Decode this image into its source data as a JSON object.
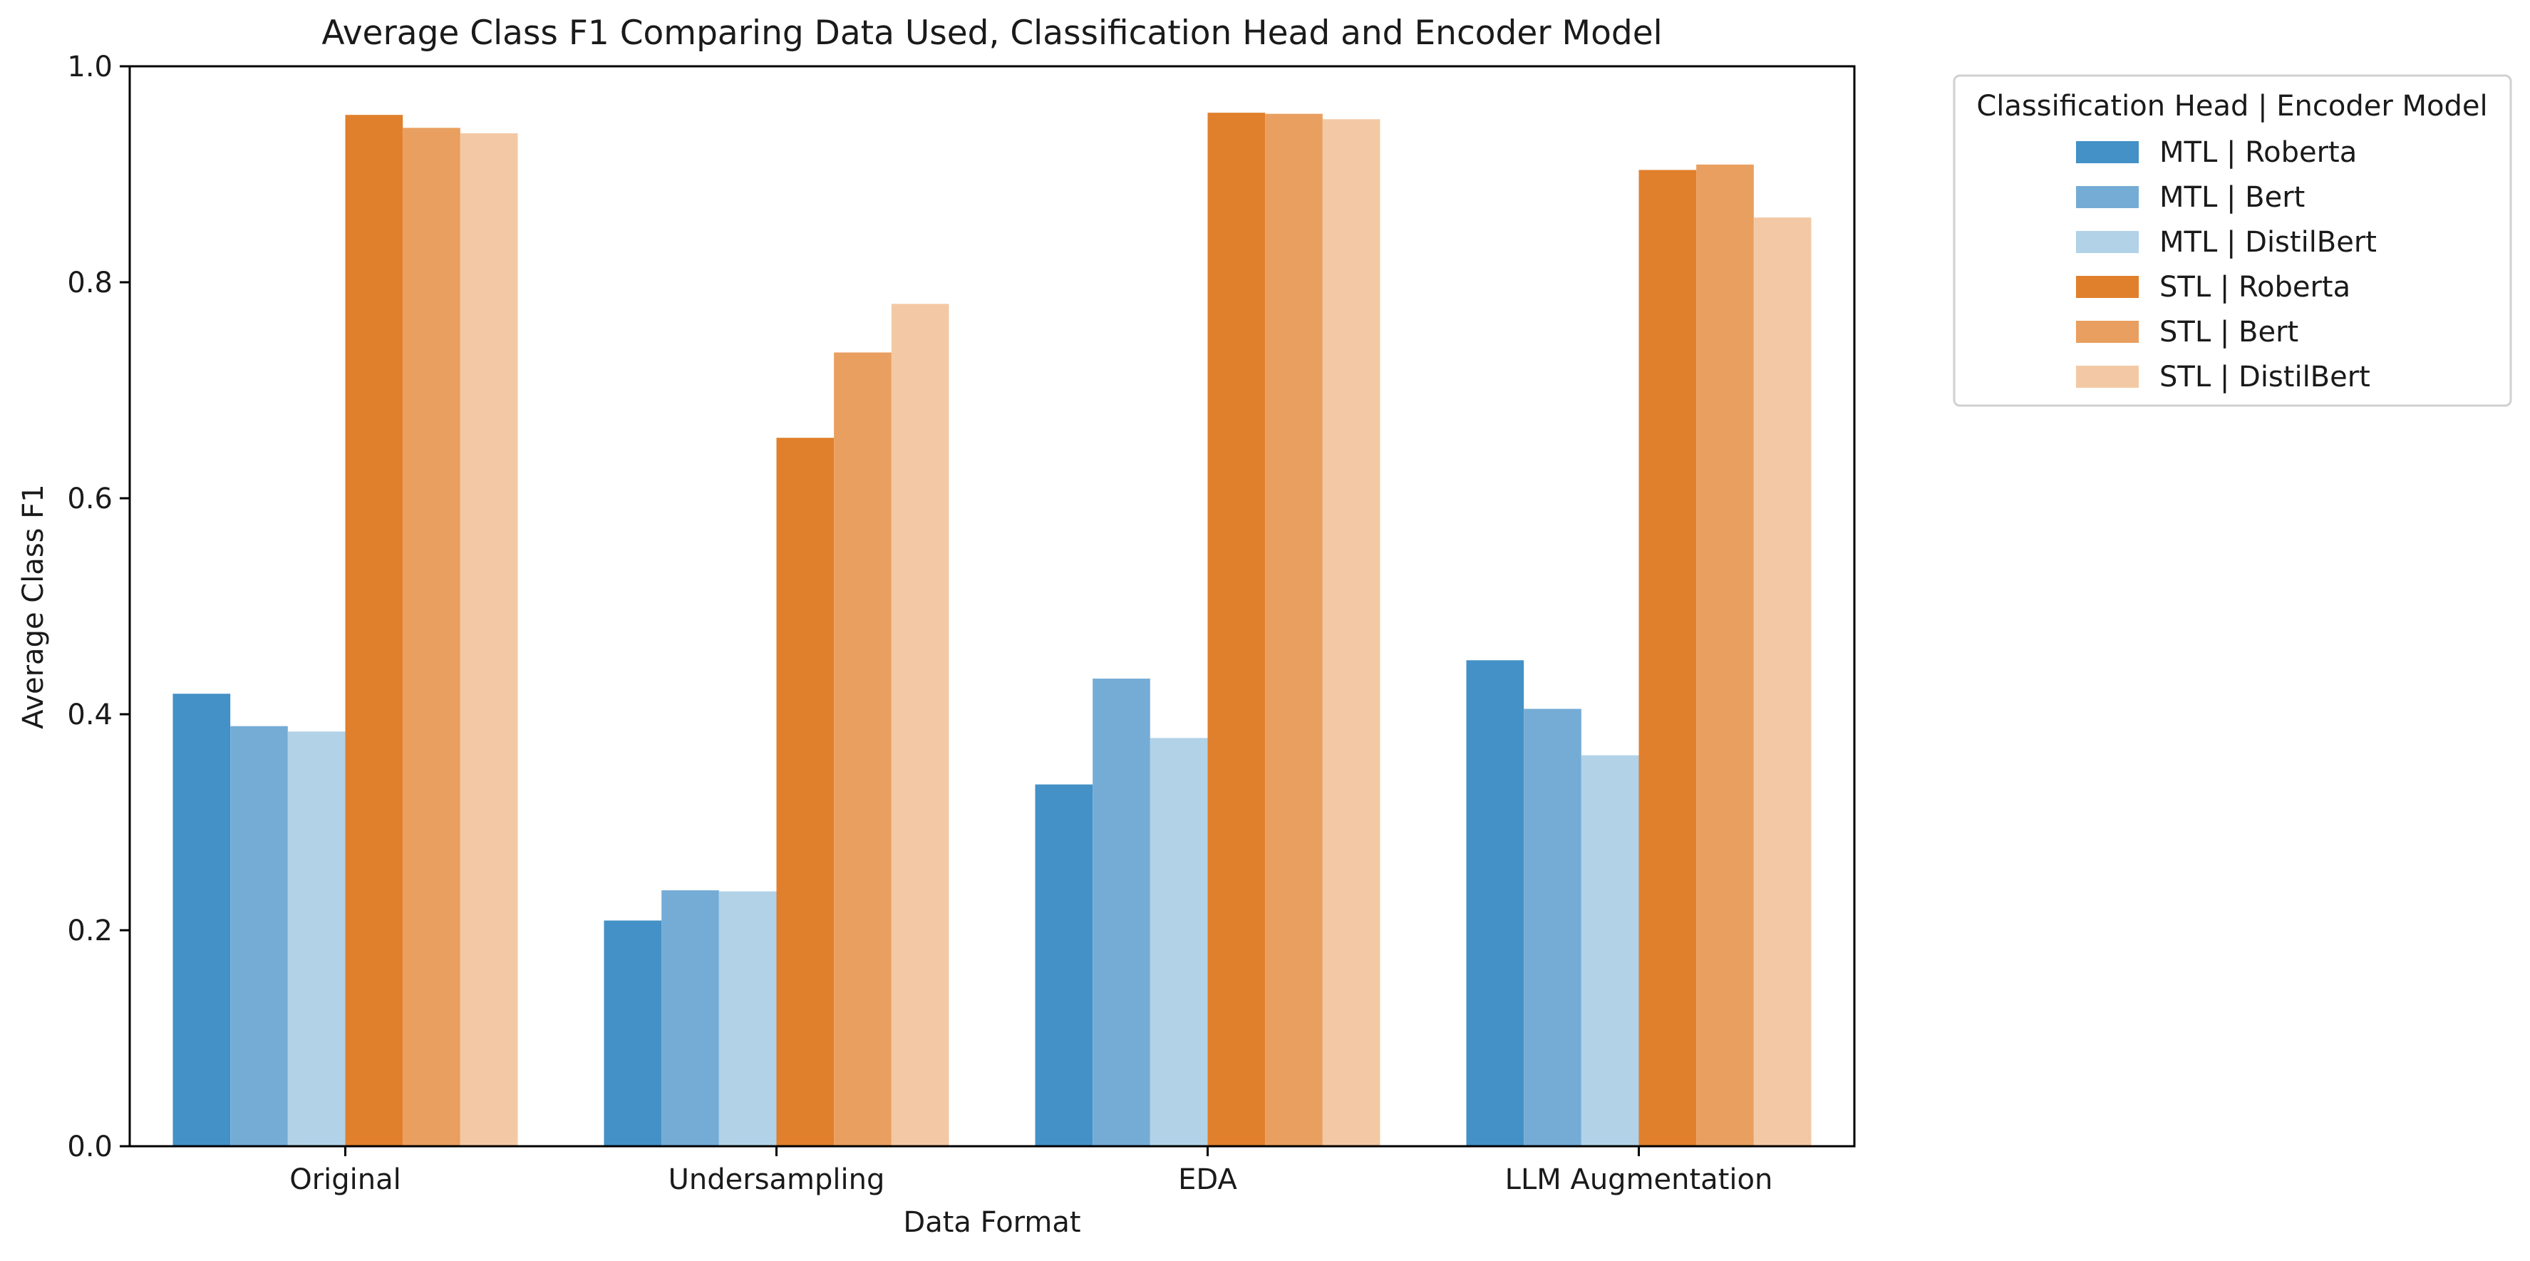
{
  "chart_data": {
    "type": "bar",
    "title": "Average Class F1 Comparing Data Used, Classification Head and Encoder Model",
    "xlabel": "Data Format",
    "ylabel": "Average Class F1",
    "ylim": [
      0,
      1.0
    ],
    "yticks": [
      "0.0",
      "0.2",
      "0.4",
      "0.6",
      "0.8",
      "1.0"
    ],
    "categories": [
      "Original",
      "Undersampling",
      "EDA",
      "LLM Augmentation"
    ],
    "grid": false,
    "legend": {
      "title": "Classification Head | Encoder Model",
      "placement": "outside top-right"
    },
    "series": [
      {
        "name": "MTL | Roberta",
        "color": "#4391c6",
        "values": [
          0.419,
          0.209,
          0.335,
          0.45
        ]
      },
      {
        "name": "MTL | Bert",
        "color": "#75acd6",
        "values": [
          0.389,
          0.237,
          0.433,
          0.405
        ]
      },
      {
        "name": "MTL | DistilBert",
        "color": "#b2d2e8",
        "values": [
          0.384,
          0.236,
          0.378,
          0.362
        ]
      },
      {
        "name": "STL | Roberta",
        "color": "#e07f2c",
        "values": [
          0.955,
          0.656,
          0.957,
          0.904
        ]
      },
      {
        "name": "STL | Bert",
        "color": "#e99f5f",
        "values": [
          0.943,
          0.735,
          0.956,
          0.909
        ]
      },
      {
        "name": "STL | DistilBert",
        "color": "#f3c9a5",
        "values": [
          0.938,
          0.78,
          0.951,
          0.86
        ]
      }
    ]
  }
}
